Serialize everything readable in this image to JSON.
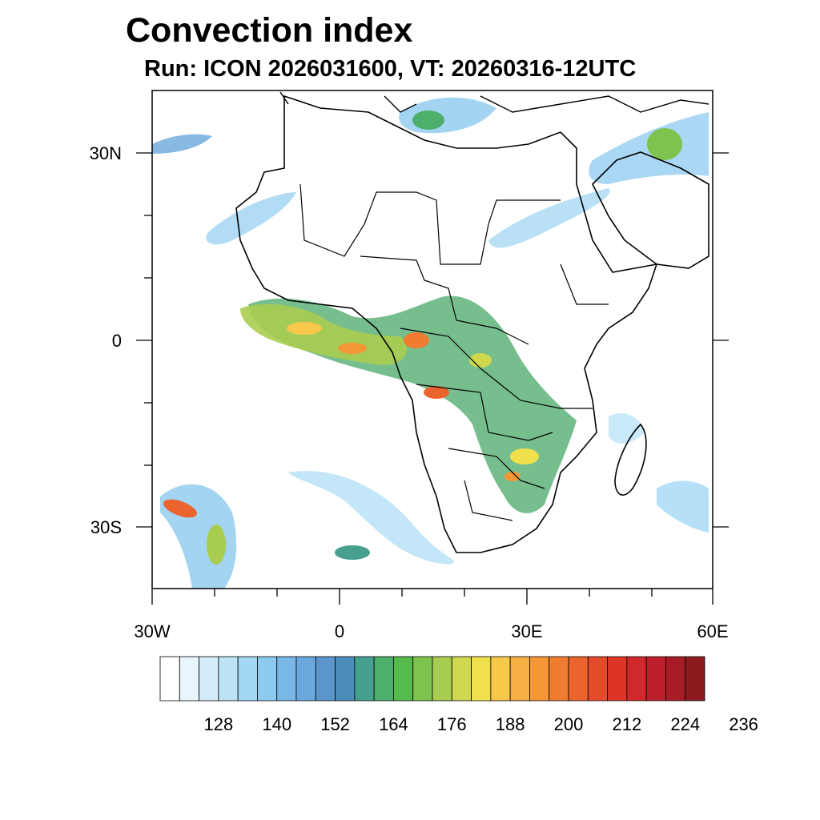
{
  "title": "Convection index",
  "subtitle": "Run: ICON 2026031600,  VT: 20260316-12UTC",
  "axes": {
    "lon_labels": [
      {
        "text": "30W",
        "value": -30
      },
      {
        "text": "0",
        "value": 0
      },
      {
        "text": "30E",
        "value": 30
      },
      {
        "text": "60E",
        "value": 60
      }
    ],
    "lat_labels": [
      {
        "text": "30N",
        "value": 30
      },
      {
        "text": "0",
        "value": 0
      },
      {
        "text": "30S",
        "value": -30
      }
    ],
    "lon_range": [
      -30,
      60
    ],
    "lat_range": [
      -40,
      40
    ]
  },
  "colorbar": {
    "colors": [
      "#ffffff",
      "#e9f5fc",
      "#d3ecf9",
      "#bde3f7",
      "#a3d8f5",
      "#8ccaf0",
      "#78b7e6",
      "#6aa7dc",
      "#5a96cd",
      "#4a8db8",
      "#47a08f",
      "#4caf6c",
      "#54bb4c",
      "#7ec34e",
      "#a8cc4f",
      "#cfd84f",
      "#f0e04c",
      "#f8c84b",
      "#f6b044",
      "#f59637",
      "#f07c30",
      "#eb632d",
      "#e44b2a",
      "#dd3428",
      "#d1282b",
      "#bd1f2b",
      "#a81c26",
      "#8d1a1f"
    ],
    "tick_labels": [
      "128",
      "140",
      "152",
      "164",
      "176",
      "188",
      "200",
      "212",
      "224",
      "236"
    ]
  }
}
